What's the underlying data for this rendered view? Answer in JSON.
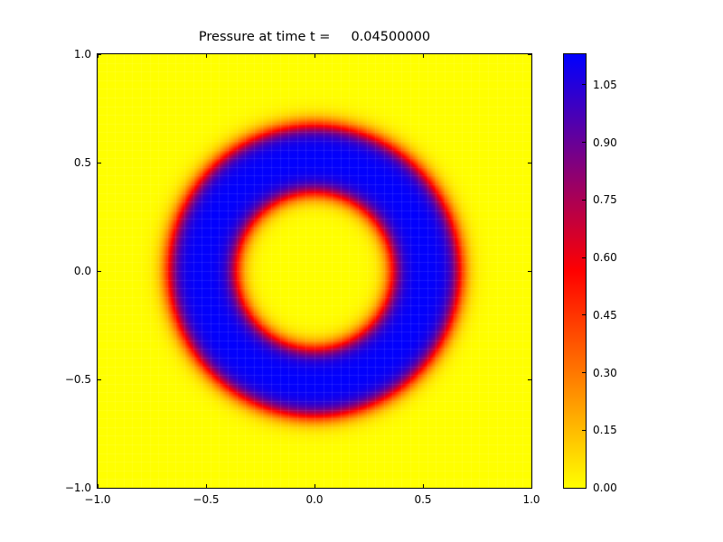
{
  "figure": {
    "background_color": "#ffffff"
  },
  "chart_data": {
    "type": "heatmap",
    "title": "Pressure at time t =     0.04500000",
    "xlabel": "",
    "ylabel": "",
    "x_range": [
      -1.0,
      1.0
    ],
    "y_range": [
      -1.0,
      1.0
    ],
    "grid": false,
    "x_ticks": [
      {
        "value": -1.0,
        "label": "−1.0"
      },
      {
        "value": -0.5,
        "label": "−0.5"
      },
      {
        "value": 0.0,
        "label": "0.0"
      },
      {
        "value": 0.5,
        "label": "0.5"
      },
      {
        "value": 1.0,
        "label": "1.0"
      }
    ],
    "y_ticks": [
      {
        "value": -1.0,
        "label": "−1.0"
      },
      {
        "value": -0.5,
        "label": "−0.5"
      },
      {
        "value": 0.0,
        "label": "0.0"
      },
      {
        "value": 0.5,
        "label": "0.5"
      },
      {
        "value": 1.0,
        "label": "1.0"
      }
    ],
    "colorbar": {
      "position": "right",
      "vmin": 0.0,
      "vmax": 1.13,
      "ticks": [
        {
          "value": 0.0,
          "label": "0.00"
        },
        {
          "value": 0.15,
          "label": "0.15"
        },
        {
          "value": 0.3,
          "label": "0.30"
        },
        {
          "value": 0.45,
          "label": "0.45"
        },
        {
          "value": 0.6,
          "label": "0.60"
        },
        {
          "value": 0.75,
          "label": "0.75"
        },
        {
          "value": 0.9,
          "label": "0.90"
        },
        {
          "value": 1.05,
          "label": "1.05"
        }
      ],
      "colormap_stops": [
        {
          "t": 0.0,
          "color": "#ffff00"
        },
        {
          "t": 0.5,
          "color": "#ff0000"
        },
        {
          "t": 1.0,
          "color": "#0000ff"
        }
      ]
    },
    "field": {
      "description": "Radially symmetric pressure pulse: value 0 (yellow) everywhere except an annular ring centered at the origin where pressure peaks near the colorbar maximum (blue), with smooth red/purple transition bands at the ring edges.",
      "background_value": 0.0,
      "peak_value": 1.13,
      "ring_inner_radius": 0.36,
      "ring_outer_radius": 0.67,
      "edge_width": 0.05,
      "mesh_cells": 50
    }
  }
}
